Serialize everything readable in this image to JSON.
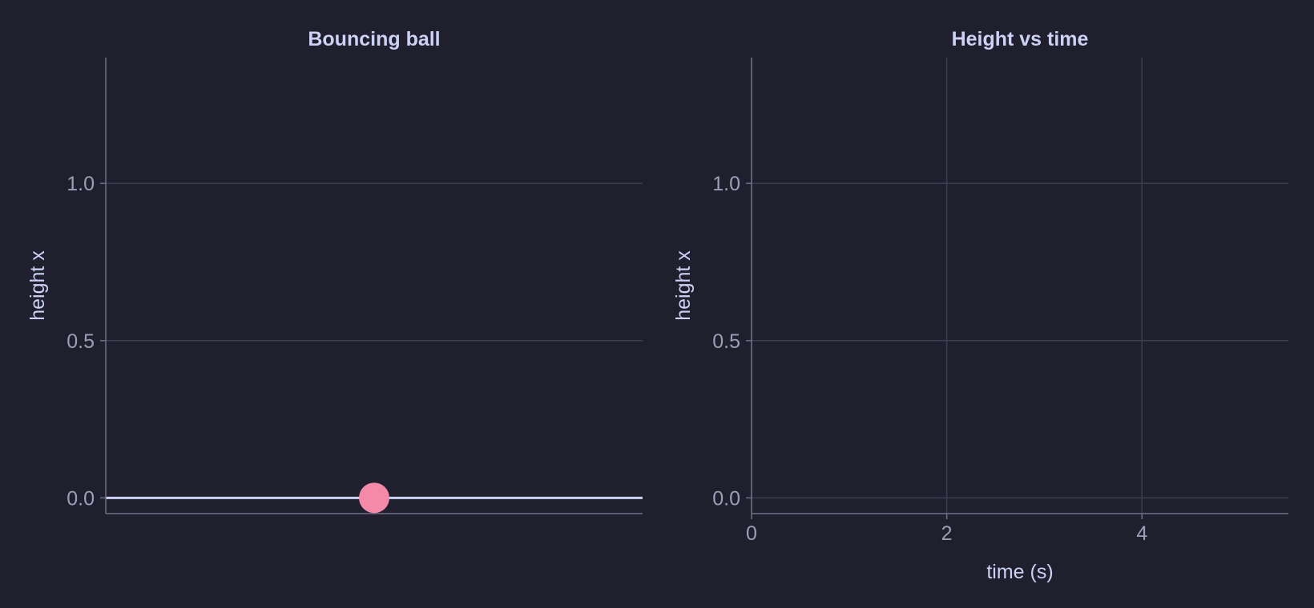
{
  "chart_data": [
    {
      "type": "scatter",
      "title": "Bouncing ball",
      "xlabel": "",
      "ylabel": "height x",
      "ylim": [
        -0.05,
        1.4
      ],
      "yticks": [
        0.0,
        0.5,
        1.0
      ],
      "ytick_labels": [
        "0.0",
        "0.5",
        "1.0"
      ],
      "xticks": [],
      "grid": true,
      "ground_line_y": 0.0,
      "series": [
        {
          "points": [
            {
              "x": 0.5,
              "y": 0.0
            }
          ]
        }
      ],
      "colors": {
        "ball": "#f48aa8",
        "ground": "#cdd2f5"
      }
    },
    {
      "type": "line",
      "title": "Height vs time",
      "xlabel": "time (s)",
      "ylabel": "height x",
      "xlim": [
        0,
        5.5
      ],
      "ylim": [
        -0.05,
        1.4
      ],
      "xticks": [
        0,
        2,
        4
      ],
      "xtick_labels": [
        "0",
        "2",
        "4"
      ],
      "yticks": [
        0.0,
        0.5,
        1.0
      ],
      "ytick_labels": [
        "0.0",
        "0.5",
        "1.0"
      ],
      "grid": true,
      "series": [
        {
          "x": [],
          "y": []
        }
      ]
    }
  ],
  "colors": {
    "background": "#1f1f2e",
    "grid": "#3d3e52",
    "spine": "#6e7088",
    "text": "#cdd2f5",
    "tick_text": "#9d9fb8"
  }
}
